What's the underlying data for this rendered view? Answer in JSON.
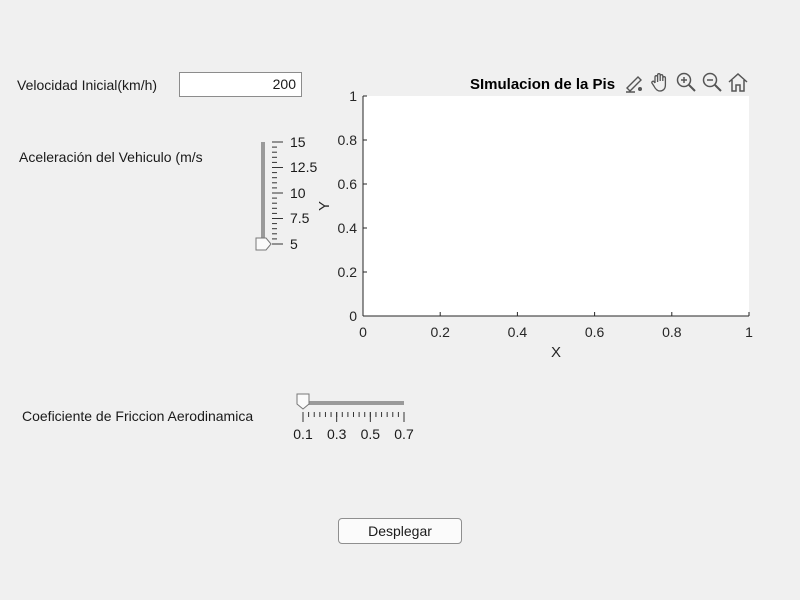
{
  "velocity": {
    "label": "Velocidad Inicial(km/h)",
    "value": "200"
  },
  "acceleration": {
    "label": "Aceleración del Vehiculo (m/s",
    "ticks": [
      "15",
      "12.5",
      "10",
      "7.5",
      "5"
    ],
    "value": 5,
    "min": 5,
    "max": 15
  },
  "friction": {
    "label": "Coeficiente de Friccion Aerodinamica",
    "ticks": [
      "0.1",
      "0.3",
      "0.5",
      "0.7"
    ],
    "value": 0.1,
    "min": 0.1,
    "max": 0.7
  },
  "plot": {
    "title": "SImulacion de la Pis",
    "xlabel": "X",
    "ylabel": "Y",
    "xticks": [
      "0",
      "0.2",
      "0.4",
      "0.6",
      "0.8",
      "1"
    ],
    "yticks": [
      "0",
      "0.2",
      "0.4",
      "0.6",
      "0.8",
      "1"
    ],
    "toolbar": [
      "brush-icon",
      "pan-hand-icon",
      "zoom-in-icon",
      "zoom-out-icon",
      "home-icon"
    ]
  },
  "button": {
    "label": "Desplegar"
  }
}
